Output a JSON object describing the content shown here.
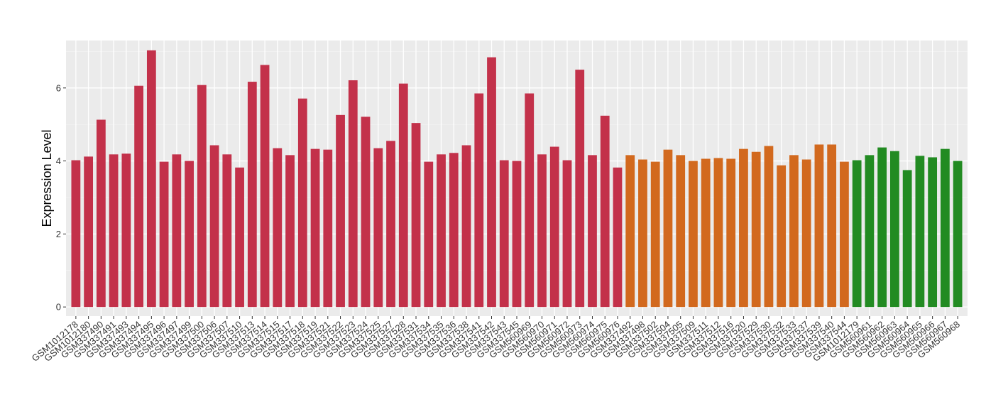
{
  "chart_data": {
    "type": "bar",
    "ylabel": "Expression Level",
    "xlabel": "",
    "ylim": [
      -0.25,
      7.3
    ],
    "yticks": [
      0,
      2,
      4,
      6
    ],
    "grid": true,
    "panel_color": "#EBEBEB",
    "categories": [
      "GSM1012178",
      "GSM1012180",
      "GSM337490",
      "GSM337491",
      "GSM337493",
      "GSM337494",
      "GSM337495",
      "GSM337496",
      "GSM337497",
      "GSM337499",
      "GSM337500",
      "GSM337506",
      "GSM337507",
      "GSM337510",
      "GSM337513",
      "GSM337514",
      "GSM337515",
      "GSM337517",
      "GSM337518",
      "GSM337519",
      "GSM337521",
      "GSM337522",
      "GSM337523",
      "GSM337524",
      "GSM337525",
      "GSM337527",
      "GSM337528",
      "GSM337531",
      "GSM337534",
      "GSM337535",
      "GSM337536",
      "GSM337538",
      "GSM337541",
      "GSM337542",
      "GSM337543",
      "GSM337545",
      "GSM560969",
      "GSM560970",
      "GSM560971",
      "GSM560972",
      "GSM560973",
      "GSM560974",
      "GSM560975",
      "GSM560976",
      "GSM337492",
      "GSM337498",
      "GSM337502",
      "GSM337504",
      "GSM337505",
      "GSM337509",
      "GSM337511",
      "GSM337512",
      "GSM337516",
      "GSM337520",
      "GSM337529",
      "GSM337530",
      "GSM337532",
      "GSM337533",
      "GSM337537",
      "GSM337539",
      "GSM337540",
      "GSM337544",
      "GSM1012179",
      "GSM560961",
      "GSM560962",
      "GSM560963",
      "GSM560964",
      "GSM560965",
      "GSM560966",
      "GSM560967",
      "GSM560968"
    ],
    "values": [
      4.02,
      4.12,
      5.13,
      4.18,
      4.2,
      6.06,
      7.03,
      3.98,
      4.18,
      4.0,
      6.08,
      4.43,
      4.18,
      3.82,
      6.17,
      6.63,
      4.35,
      4.16,
      5.71,
      4.33,
      4.31,
      5.26,
      6.21,
      5.21,
      4.35,
      4.55,
      6.12,
      5.04,
      3.98,
      4.18,
      4.22,
      4.43,
      5.85,
      6.84,
      4.02,
      4.0,
      5.85,
      4.18,
      4.39,
      4.02,
      6.5,
      4.16,
      5.24,
      3.82,
      4.16,
      4.04,
      3.98,
      4.31,
      4.16,
      4.0,
      4.06,
      4.08,
      4.06,
      4.33,
      4.25,
      4.41,
      3.88,
      4.16,
      4.04,
      4.45,
      4.45,
      3.98,
      4.02,
      4.16,
      4.37,
      4.27,
      3.75,
      4.14,
      4.1,
      4.33,
      4.0
    ],
    "groups": [
      {
        "color": "#C3314A",
        "count": 44
      },
      {
        "color": "#D2691E",
        "count": 18
      },
      {
        "color": "#228B22",
        "count": 9
      }
    ]
  }
}
